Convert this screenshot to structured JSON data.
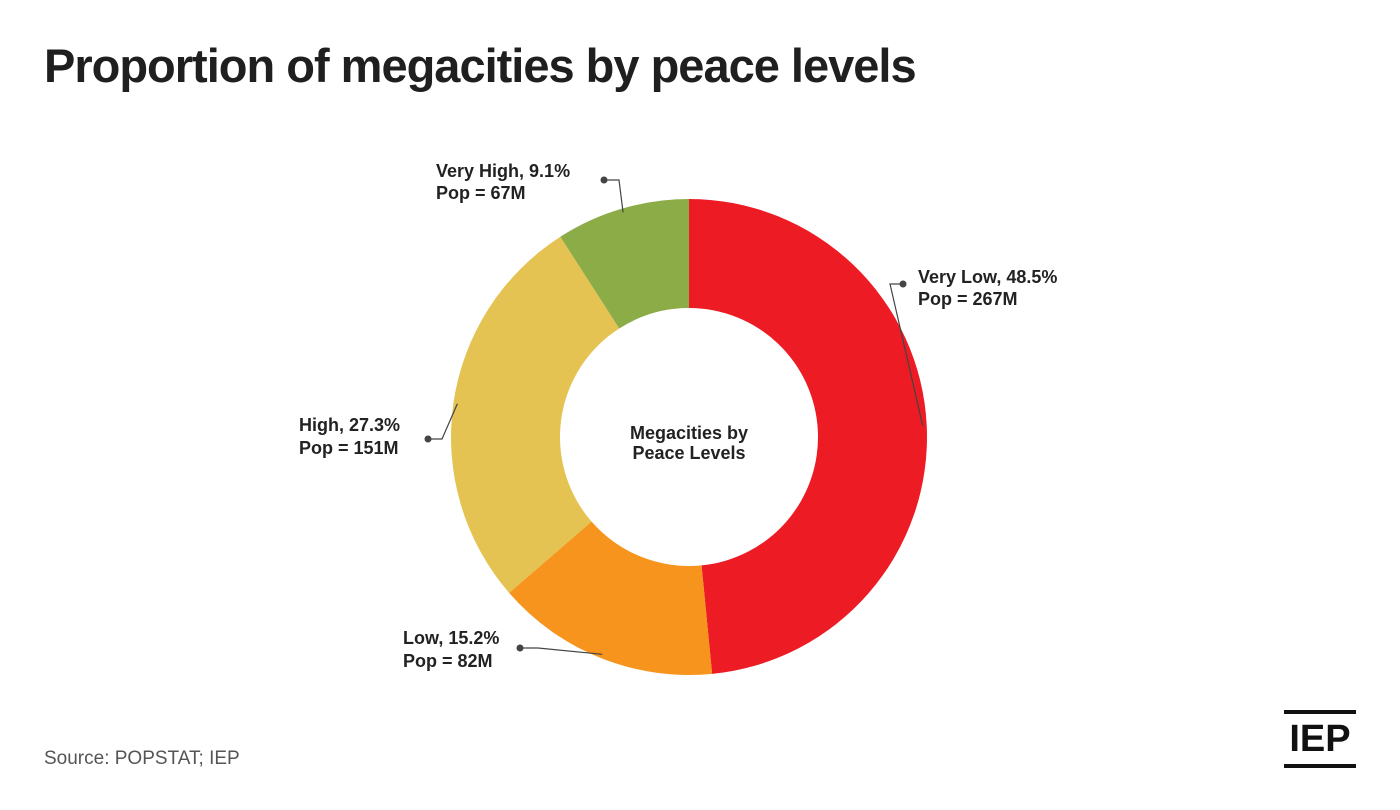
{
  "chart_data": {
    "type": "pie",
    "title": "Proportion of megacities by peace levels",
    "center_label_lines": [
      "Megacities by",
      "Peace Levels"
    ],
    "slices": [
      {
        "name": "Very Low",
        "pct_label": "48.5%",
        "value": 48.5,
        "pop_label": "Pop = 267M",
        "color": "#ED1C24"
      },
      {
        "name": "Low",
        "pct_label": "15.2%",
        "value": 15.2,
        "pop_label": "Pop = 82M",
        "color": "#F7941D"
      },
      {
        "name": "High",
        "pct_label": "27.3%",
        "value": 27.3,
        "pop_label": "Pop = 151M",
        "color": "#E5C352"
      },
      {
        "name": "Very High",
        "pct_label": "9.1%",
        "value": 9.1,
        "pop_label": "Pop = 67M",
        "color": "#8BAC47"
      }
    ]
  },
  "source": "Source: POPSTAT; IEP",
  "logo": {
    "text": "IEP"
  }
}
